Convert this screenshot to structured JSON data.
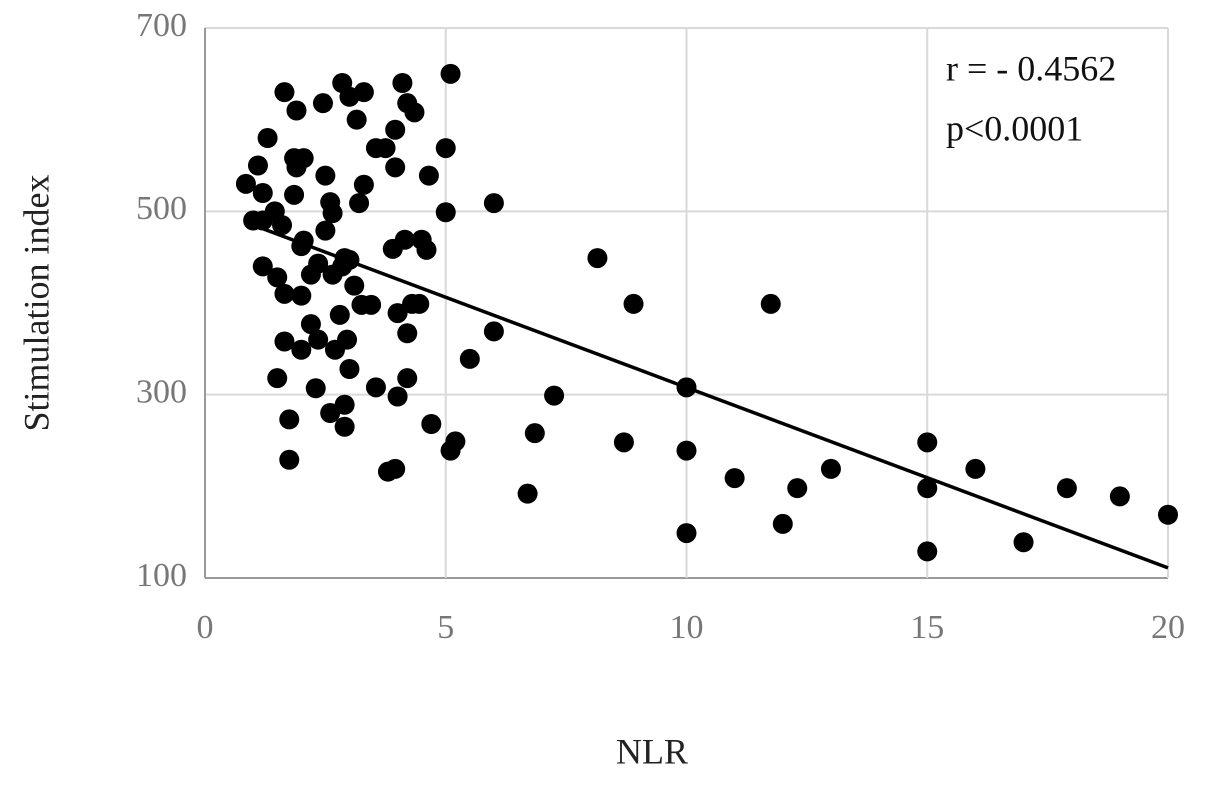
{
  "chart_data": {
    "type": "scatter",
    "x_label": "NLR",
    "y_label": "Stimulation index",
    "annotations": [
      "r = - 0.4562",
      "p<0.0001"
    ],
    "xlim": [
      0,
      20
    ],
    "xticks": [
      0,
      5,
      10,
      15,
      20
    ],
    "ylim": [
      100,
      700
    ],
    "yticks": [
      100,
      300,
      500,
      700
    ],
    "grid": true,
    "color": "#000000",
    "x": [
      0.85,
      1.1,
      1.2,
      1.3,
      1.0,
      1.2,
      1.45,
      1.6,
      1.2,
      1.5,
      1.65,
      1.5,
      1.65,
      1.75,
      1.75,
      1.65,
      1.9,
      1.85,
      2.05,
      1.85,
      1.9,
      2.0,
      2.05,
      2.0,
      2.0,
      2.2,
      2.3,
      2.2,
      2.35,
      2.35,
      2.45,
      2.5,
      2.5,
      2.6,
      2.65,
      2.65,
      2.6,
      2.7,
      2.8,
      2.85,
      2.9,
      2.85,
      3.0,
      3.15,
      3.3,
      2.9,
      2.9,
      2.95,
      3.0,
      3.0,
      3.1,
      3.2,
      3.3,
      3.25,
      3.45,
      3.55,
      3.75,
      3.55,
      3.8,
      3.95,
      3.9,
      3.95,
      3.95,
      4.0,
      4.0,
      4.1,
      4.2,
      4.35,
      4.15,
      4.2,
      4.2,
      4.3,
      4.45,
      4.5,
      4.6,
      4.65,
      4.7,
      5.0,
      5.0,
      5.1,
      5.2,
      5.1,
      5.5,
      6.0,
      6.0,
      6.7,
      6.85,
      7.25,
      8.15,
      8.7,
      8.9,
      10.0,
      10.0,
      10.0,
      11.0,
      11.75,
      12.0,
      12.3,
      13.0,
      15.0,
      15.0,
      15.0,
      16.0,
      17.0,
      17.9,
      19.0,
      20.0
    ],
    "values": [
      530,
      550,
      520,
      580,
      490,
      490,
      500,
      485,
      440,
      428,
      410,
      318,
      358,
      273,
      229,
      630,
      610,
      558,
      558,
      518,
      548,
      462,
      468,
      408,
      349,
      377,
      307,
      431,
      360,
      443,
      618,
      539,
      479,
      510,
      431,
      498,
      280,
      349,
      387,
      440,
      449,
      640,
      625,
      600,
      630,
      265,
      289,
      360,
      328,
      447,
      419,
      509,
      529,
      398,
      398,
      569,
      569,
      308,
      216,
      219,
      459,
      548,
      589,
      389,
      298,
      640,
      618,
      608,
      469,
      367,
      318,
      399,
      399,
      469,
      458,
      539,
      268,
      569,
      499,
      650,
      249,
      239,
      339,
      369,
      509,
      192,
      258,
      299,
      449,
      248,
      399,
      308,
      239,
      149,
      209,
      399,
      159,
      198,
      219,
      248,
      198,
      129,
      219,
      139,
      198,
      189,
      169
    ],
    "trendline": {
      "x": [
        1.0,
        20
      ],
      "y": [
        485,
        111
      ]
    }
  }
}
